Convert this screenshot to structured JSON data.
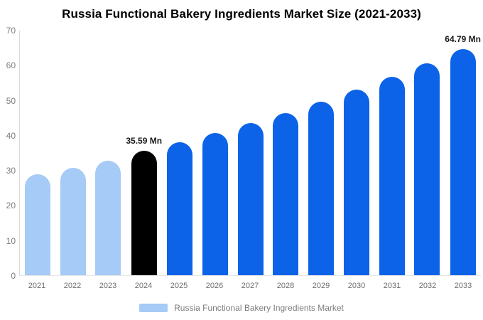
{
  "title": "Russia Functional Bakery Ingredients Market Size (2021-2033)",
  "legend": {
    "label": "Russia Functional Bakery Ingredients Market",
    "swatch_color": "#A5CBF6",
    "position": "bottom"
  },
  "chart_data": {
    "type": "bar",
    "title": "Russia Functional Bakery Ingredients Market Size (2021-2033)",
    "categories": [
      "2021",
      "2022",
      "2023",
      "2024",
      "2025",
      "2026",
      "2027",
      "2028",
      "2029",
      "2030",
      "2031",
      "2032",
      "2033"
    ],
    "values": [
      28.8,
      30.8,
      32.8,
      35.59,
      38.0,
      40.7,
      43.5,
      46.4,
      49.6,
      53.1,
      56.7,
      60.6,
      64.79
    ],
    "unit": "Mn",
    "bar_styles": [
      "historical",
      "historical",
      "historical",
      "highlight",
      "forecast",
      "forecast",
      "forecast",
      "forecast",
      "forecast",
      "forecast",
      "forecast",
      "forecast",
      "forecast"
    ],
    "point_labels": {
      "2024": "35.59 Mn",
      "2033": "64.79 Mn"
    },
    "colors": {
      "historical": "#A5CBF6",
      "highlight": "#000000",
      "forecast": "#0C63E8"
    },
    "xlabel": "",
    "ylabel": "",
    "ylim": [
      0,
      70
    ],
    "yticks": [
      0,
      10,
      20,
      30,
      40,
      50,
      60,
      70
    ],
    "grid": false,
    "legend_entries": [
      "Russia Functional Bakery Ingredients Market"
    ],
    "legend_position": "bottom"
  }
}
